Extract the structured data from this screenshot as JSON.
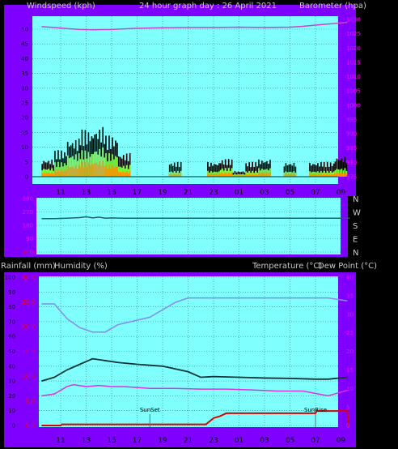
{
  "header": {
    "left": "Windspeed (kph)",
    "center": "24 hour graph day : 26 April 2021",
    "right": "Barometer (hpa)"
  },
  "labels": {
    "rainfall": "Rainfall (mm)",
    "humidity": "Humidity (%)",
    "temperature": "Temperature (°C)",
    "dewpoint": "Dew Point (°C)",
    "sunset": "SunSet",
    "sunrise": "SunRise"
  },
  "colors": {
    "frame": "#8000ff",
    "plot_bg": "#80ffff",
    "grid": "#3a7a7a",
    "barometer": "#cc44cc",
    "wind_gust": "#000000",
    "wind_avg": "#80ff40",
    "wind_low": "#ff9900",
    "wind_dir": "#1f5f70",
    "humidity": "#8888ee",
    "temperature": "#0d3333",
    "dewpoint": "#dd33dd",
    "rain": "#dd0000",
    "tick_left_top": "#000000",
    "tick_right": "#ff00ff",
    "tick_bottom_rain": "#ff0000"
  },
  "chart_data": [
    {
      "type": "bar",
      "panel": "wind-barometer",
      "x_ticks": [
        "11",
        "13",
        "15",
        "17",
        "19",
        "21",
        "23",
        "01",
        "03",
        "05",
        "07",
        "09"
      ],
      "y_left_range": [
        0,
        50
      ],
      "y_left_ticks": [
        "0",
        "5",
        "10",
        "15",
        "20",
        "25",
        "30",
        "35",
        "40",
        "45",
        "50"
      ],
      "y_right_range": [
        975,
        1030
      ],
      "y_right_ticks": [
        "975",
        "980",
        "985",
        "990",
        "995",
        "1000",
        "1005",
        "1010",
        "1015",
        "1020",
        "1025",
        "1030"
      ],
      "barometer": {
        "x": [
          9.5,
          10.5,
          11.5,
          12.5,
          13.5,
          15,
          16,
          17,
          19,
          21,
          23,
          25,
          27,
          29,
          30,
          31,
          32,
          33,
          33.5
        ],
        "y": [
          1027.5,
          1027.2,
          1026.8,
          1026.5,
          1026.4,
          1026.5,
          1026.7,
          1026.9,
          1027.1,
          1027.2,
          1027.2,
          1027.3,
          1027.2,
          1027.3,
          1027.6,
          1028.0,
          1028.4,
          1028.8,
          1029.0
        ]
      },
      "wind_gust_segments": [
        [
          10,
          6
        ],
        [
          11,
          9
        ],
        [
          12,
          13
        ],
        [
          13,
          16
        ],
        [
          14,
          17
        ],
        [
          15,
          14
        ],
        [
          16,
          8
        ],
        [
          17,
          0
        ],
        [
          18,
          0
        ],
        [
          19,
          0
        ],
        [
          20,
          5
        ],
        [
          21,
          0
        ],
        [
          22,
          0
        ],
        [
          23,
          5
        ],
        [
          24,
          6
        ],
        [
          25,
          2
        ],
        [
          26,
          5
        ],
        [
          27,
          6
        ],
        [
          28,
          0
        ],
        [
          29,
          5
        ],
        [
          30,
          0
        ],
        [
          31,
          5
        ],
        [
          32,
          5
        ],
        [
          33,
          7
        ]
      ],
      "wind_avg_segments": [
        [
          10,
          3
        ],
        [
          11,
          5
        ],
        [
          12,
          8
        ],
        [
          13,
          9
        ],
        [
          14,
          10
        ],
        [
          15,
          8
        ],
        [
          16,
          4
        ],
        [
          17,
          0
        ],
        [
          18,
          0
        ],
        [
          19,
          0
        ],
        [
          20,
          2
        ],
        [
          21,
          0
        ],
        [
          22,
          0
        ],
        [
          23,
          2
        ],
        [
          24,
          3
        ],
        [
          25,
          1
        ],
        [
          26,
          2
        ],
        [
          27,
          3
        ],
        [
          28,
          0
        ],
        [
          29,
          2
        ],
        [
          30,
          0
        ],
        [
          31,
          2
        ],
        [
          32,
          2
        ],
        [
          33,
          3
        ]
      ],
      "wind_low_segments": [
        [
          10,
          1.5
        ],
        [
          11,
          2.5
        ],
        [
          12,
          4
        ],
        [
          13,
          5
        ],
        [
          14,
          5.5
        ],
        [
          15,
          4
        ],
        [
          16,
          2
        ],
        [
          17,
          0
        ],
        [
          18,
          0
        ],
        [
          19,
          0
        ],
        [
          20,
          1
        ],
        [
          21,
          0
        ],
        [
          22,
          0
        ],
        [
          23,
          1
        ],
        [
          24,
          1.5
        ],
        [
          25,
          0.5
        ],
        [
          26,
          1
        ],
        [
          27,
          1.5
        ],
        [
          28,
          0
        ],
        [
          29,
          1
        ],
        [
          30,
          0
        ],
        [
          31,
          1
        ],
        [
          32,
          1
        ],
        [
          33,
          1.5
        ]
      ]
    },
    {
      "type": "line",
      "panel": "wind-direction",
      "y_ticks": [
        "360",
        "270",
        "180",
        "90",
        "0"
      ],
      "y_right_labels": [
        "N",
        "W",
        "S",
        "E",
        "N"
      ],
      "y_range": [
        0,
        360
      ],
      "x": [
        9.5,
        10.5,
        11.5,
        12.5,
        13,
        13.5,
        14,
        14.5,
        15,
        16,
        20,
        25,
        30,
        33.7
      ],
      "y": [
        225,
        225,
        228,
        232,
        238,
        230,
        235,
        228,
        230,
        228,
        228,
        228,
        228,
        228
      ]
    },
    {
      "type": "line",
      "panel": "temp-humidity-rain",
      "x_ticks": [
        "11",
        "13",
        "15",
        "17",
        "19",
        "21",
        "23",
        "01",
        "03",
        "05",
        "07",
        "09"
      ],
      "y_left_range": [
        0,
        100
      ],
      "y_left_ticks": [
        "0",
        "10",
        "20",
        "30",
        "40",
        "50",
        "60",
        "70",
        "80",
        "90",
        "100"
      ],
      "y_right_range": [
        0,
        40
      ],
      "y_right_ticks": [
        "0",
        "5",
        "10",
        "15",
        "20",
        "25",
        "30",
        "35",
        "40"
      ],
      "rain_ticks": [
        "0.0",
        "5.0",
        "10.0",
        "15.0",
        "20.0",
        "25.0",
        "30.0",
        "35.0"
      ],
      "humidity": {
        "x": [
          9.5,
          10.5,
          11.5,
          12.5,
          13.5,
          14.5,
          15.5,
          16.5,
          18,
          19,
          20,
          21,
          22,
          24,
          26,
          28,
          30,
          32,
          33.5
        ],
        "y": [
          82,
          82,
          72,
          66,
          63,
          63,
          68,
          70,
          73,
          78,
          83,
          86,
          86,
          86,
          86,
          86,
          86,
          86,
          84
        ]
      },
      "temperature": {
        "x": [
          9.5,
          10.5,
          11.5,
          12.5,
          13.5,
          14.5,
          15.5,
          17,
          19,
          21,
          22,
          23,
          25,
          27,
          29,
          31,
          32,
          33.5
        ],
        "y": [
          12,
          13,
          15,
          16.5,
          18,
          17.5,
          17,
          16.5,
          16,
          14.5,
          13,
          13.2,
          13,
          12.8,
          12.7,
          12.5,
          12.5,
          13
        ]
      },
      "dewpoint": {
        "x": [
          9.5,
          10.5,
          11.5,
          12,
          13,
          14,
          15,
          16,
          18,
          20,
          22,
          24,
          26,
          28,
          30,
          32,
          33.5
        ],
        "y": [
          8,
          8.5,
          10.5,
          11,
          10.5,
          10.8,
          10.5,
          10.5,
          10,
          10,
          9.8,
          9.8,
          9.6,
          9.3,
          9.3,
          8,
          9.5
        ]
      },
      "rain": {
        "x": [
          9.5,
          11,
          11.1,
          22.4,
          23,
          23.5,
          24,
          31,
          31.1,
          33.5,
          33.6
        ],
        "y": [
          0,
          0,
          0.3,
          0.3,
          2,
          2.5,
          3.3,
          3.3,
          3.9,
          3.9,
          0
        ]
      },
      "sunset_hour": 18,
      "sunrise_hour": 31
    }
  ]
}
